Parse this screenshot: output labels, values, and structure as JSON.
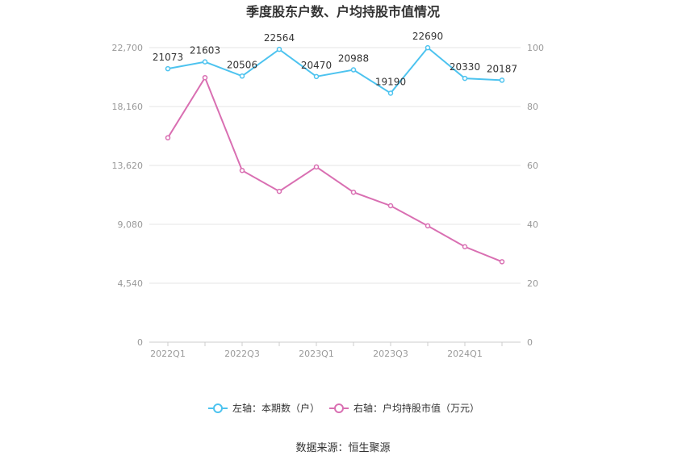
{
  "chart_data": {
    "type": "line",
    "title": "季度股东户数、户均持股市值情况",
    "categories": [
      "2022Q1",
      "2022Q2",
      "2022Q3",
      "2022Q4",
      "2023Q1",
      "2023Q2",
      "2023Q3",
      "2023Q4",
      "2024Q1",
      "2024Q2"
    ],
    "x_tick_labels": [
      "2022Q1",
      "",
      "2022Q3",
      "",
      "2023Q1",
      "",
      "2023Q3",
      "",
      "2024Q1",
      ""
    ],
    "left_axis": {
      "ticks": [
        "0",
        "4,540",
        "9,080",
        "13,620",
        "18,160",
        "22,700"
      ],
      "ylim": [
        0,
        22700
      ]
    },
    "right_axis": {
      "ticks": [
        "0",
        "20",
        "40",
        "60",
        "80",
        "100"
      ],
      "ylim": [
        0,
        100
      ]
    },
    "series": [
      {
        "name": "左轴：本期数（户）",
        "axis": "left",
        "color": "#4dc3ef",
        "values": [
          21073,
          21603,
          20506,
          22564,
          20470,
          20988,
          19190,
          22690,
          20330,
          20187
        ],
        "labels": [
          "21073",
          "21603",
          "20506",
          "22564",
          "20470",
          "20988",
          "19190",
          "22690",
          "20330",
          "20187"
        ]
      },
      {
        "name": "右轴：户均持股市值（万元）",
        "axis": "right",
        "color": "#d96fb2",
        "values": [
          69.4,
          89.8,
          58.3,
          51.2,
          59.5,
          50.9,
          46.3,
          39.5,
          32.4,
          27.3
        ]
      }
    ],
    "grid": true,
    "legend_position": "bottom"
  },
  "source": "数据来源：恒生聚源"
}
